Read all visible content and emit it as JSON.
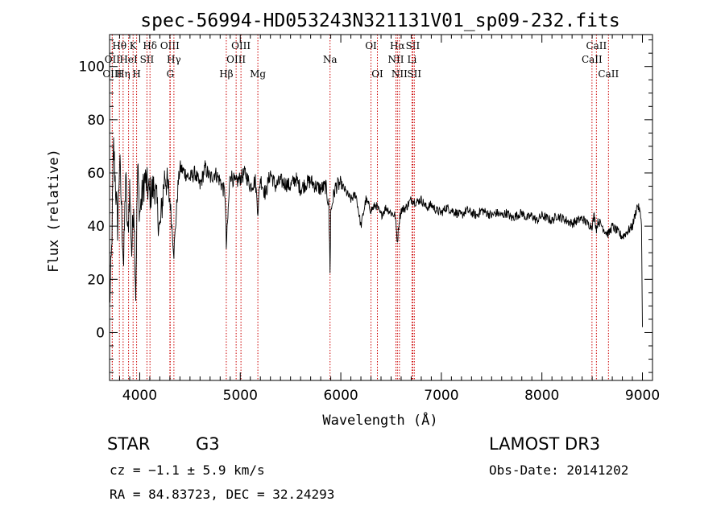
{
  "colors": {
    "line_marker": "#cc0000",
    "spectrum": "#000000",
    "axes": "#000000"
  },
  "info": {
    "object_type": "STAR",
    "subclass": "G3",
    "survey": "LAMOST DR3",
    "cz": "cz = −1.1 ± 5.9 km/s",
    "obs_date": "Obs-Date: 20141202",
    "radec": "RA =  84.83723, DEC =  32.24293"
  },
  "chart_data": {
    "type": "line",
    "title": "spec-56994-HD053243N321131V01_sp09-232.fits",
    "xlabel": "Wavelength (Å)",
    "ylabel": "Flux (relative)",
    "xlim": [
      3700,
      9100
    ],
    "ylim": [
      -18,
      112
    ],
    "xticks": [
      4000,
      5000,
      6000,
      7000,
      8000,
      9000
    ],
    "xtick_labels": [
      "4000",
      "5000",
      "6000",
      "7000",
      "8000",
      "9000"
    ],
    "yticks": [
      0,
      20,
      40,
      60,
      80,
      100
    ],
    "ytick_labels": [
      "0",
      "20",
      "40",
      "60",
      "80",
      "100"
    ],
    "series": [
      {
        "name": "flux",
        "x": [
          3700,
          3720,
          3740,
          3760,
          3780,
          3800,
          3820,
          3840,
          3860,
          3880,
          3900,
          3920,
          3940,
          3960,
          3980,
          4000,
          4050,
          4100,
          4150,
          4200,
          4250,
          4300,
          4340,
          4380,
          4400,
          4450,
          4500,
          4550,
          4600,
          4650,
          4700,
          4750,
          4800,
          4850,
          4861,
          4900,
          4950,
          5000,
          5050,
          5100,
          5150,
          5175,
          5200,
          5250,
          5300,
          5350,
          5400,
          5450,
          5500,
          5550,
          5600,
          5650,
          5700,
          5750,
          5800,
          5850,
          5880,
          5893,
          5900,
          5920,
          5950,
          6000,
          6050,
          6100,
          6150,
          6200,
          6250,
          6300,
          6350,
          6400,
          6450,
          6500,
          6540,
          6563,
          6580,
          6600,
          6650,
          6700,
          6750,
          6800,
          6850,
          6900,
          6950,
          7000,
          7050,
          7100,
          7150,
          7200,
          7250,
          7300,
          7350,
          7400,
          7450,
          7500,
          7550,
          7600,
          7650,
          7700,
          7750,
          7800,
          7850,
          7900,
          7950,
          8000,
          8050,
          8100,
          8150,
          8200,
          8250,
          8300,
          8350,
          8400,
          8450,
          8498,
          8520,
          8542,
          8560,
          8600,
          8630,
          8662,
          8700,
          8750,
          8800,
          8850,
          8900,
          8950,
          8970,
          8990,
          9000
        ],
        "y": [
          10,
          30,
          70,
          55,
          40,
          65,
          45,
          25,
          60,
          35,
          55,
          30,
          50,
          15,
          62,
          45,
          58,
          52,
          55,
          38,
          60,
          50,
          30,
          55,
          62,
          60,
          58,
          60,
          55,
          62,
          58,
          60,
          57,
          52,
          32,
          60,
          56,
          58,
          60,
          55,
          57,
          46,
          58,
          52,
          60,
          55,
          57,
          56,
          55,
          58,
          54,
          56,
          57,
          55,
          54,
          55,
          48,
          24,
          45,
          50,
          55,
          56,
          53,
          50,
          52,
          40,
          50,
          46,
          48,
          44,
          47,
          45,
          44,
          34,
          42,
          46,
          47,
          50,
          49,
          50,
          47,
          48,
          46,
          45,
          47,
          46,
          45,
          44,
          46,
          45,
          44,
          46,
          45,
          44,
          45,
          44,
          45,
          43,
          44,
          45,
          43,
          44,
          42,
          44,
          43,
          42,
          44,
          43,
          42,
          41,
          42,
          43,
          41,
          40,
          44,
          39,
          42,
          40,
          38,
          37,
          40,
          38,
          36,
          38,
          40,
          48,
          46,
          42,
          2
        ]
      }
    ],
    "line_markers": [
      {
        "label": "OII",
        "wavelength": 3727,
        "row": 1
      },
      {
        "label": "OIII",
        "wavelength": 3727,
        "row": 2
      },
      {
        "label": "Hθ",
        "wavelength": 3798,
        "row": 0
      },
      {
        "label": "Hη",
        "wavelength": 3835,
        "row": 2
      },
      {
        "label": "HeI",
        "wavelength": 3889,
        "row": 1
      },
      {
        "label": "K",
        "wavelength": 3934,
        "row": 0
      },
      {
        "label": "H",
        "wavelength": 3969,
        "row": 2
      },
      {
        "label": "SII",
        "wavelength": 4072,
        "row": 1
      },
      {
        "label": "Hδ",
        "wavelength": 4102,
        "row": 0
      },
      {
        "label": "OIII",
        "wavelength": 4300,
        "row": 0
      },
      {
        "label": "Hγ",
        "wavelength": 4340,
        "row": 1
      },
      {
        "label": "G",
        "wavelength": 4304,
        "row": 2
      },
      {
        "label": "Hβ",
        "wavelength": 4861,
        "row": 2
      },
      {
        "label": "OIII",
        "wavelength": 5007,
        "row": 0
      },
      {
        "label": "OIII",
        "wavelength": 4959,
        "row": 1
      },
      {
        "label": "Mg",
        "wavelength": 5175,
        "row": 2
      },
      {
        "label": "Na",
        "wavelength": 5893,
        "row": 1
      },
      {
        "label": "OI",
        "wavelength": 6300,
        "row": 0
      },
      {
        "label": "OI",
        "wavelength": 6364,
        "row": 2
      },
      {
        "label": "Hα",
        "wavelength": 6563,
        "row": 0
      },
      {
        "label": "NII",
        "wavelength": 6548,
        "row": 1
      },
      {
        "label": "NII",
        "wavelength": 6583,
        "row": 2
      },
      {
        "label": "SII",
        "wavelength": 6716,
        "row": 0
      },
      {
        "label": "Li",
        "wavelength": 6708,
        "row": 1
      },
      {
        "label": "SII",
        "wavelength": 6731,
        "row": 2
      },
      {
        "label": "CaII",
        "wavelength": 8542,
        "row": 0
      },
      {
        "label": "CaII",
        "wavelength": 8498,
        "row": 1
      },
      {
        "label": "CaII",
        "wavelength": 8662,
        "row": 2
      }
    ]
  }
}
